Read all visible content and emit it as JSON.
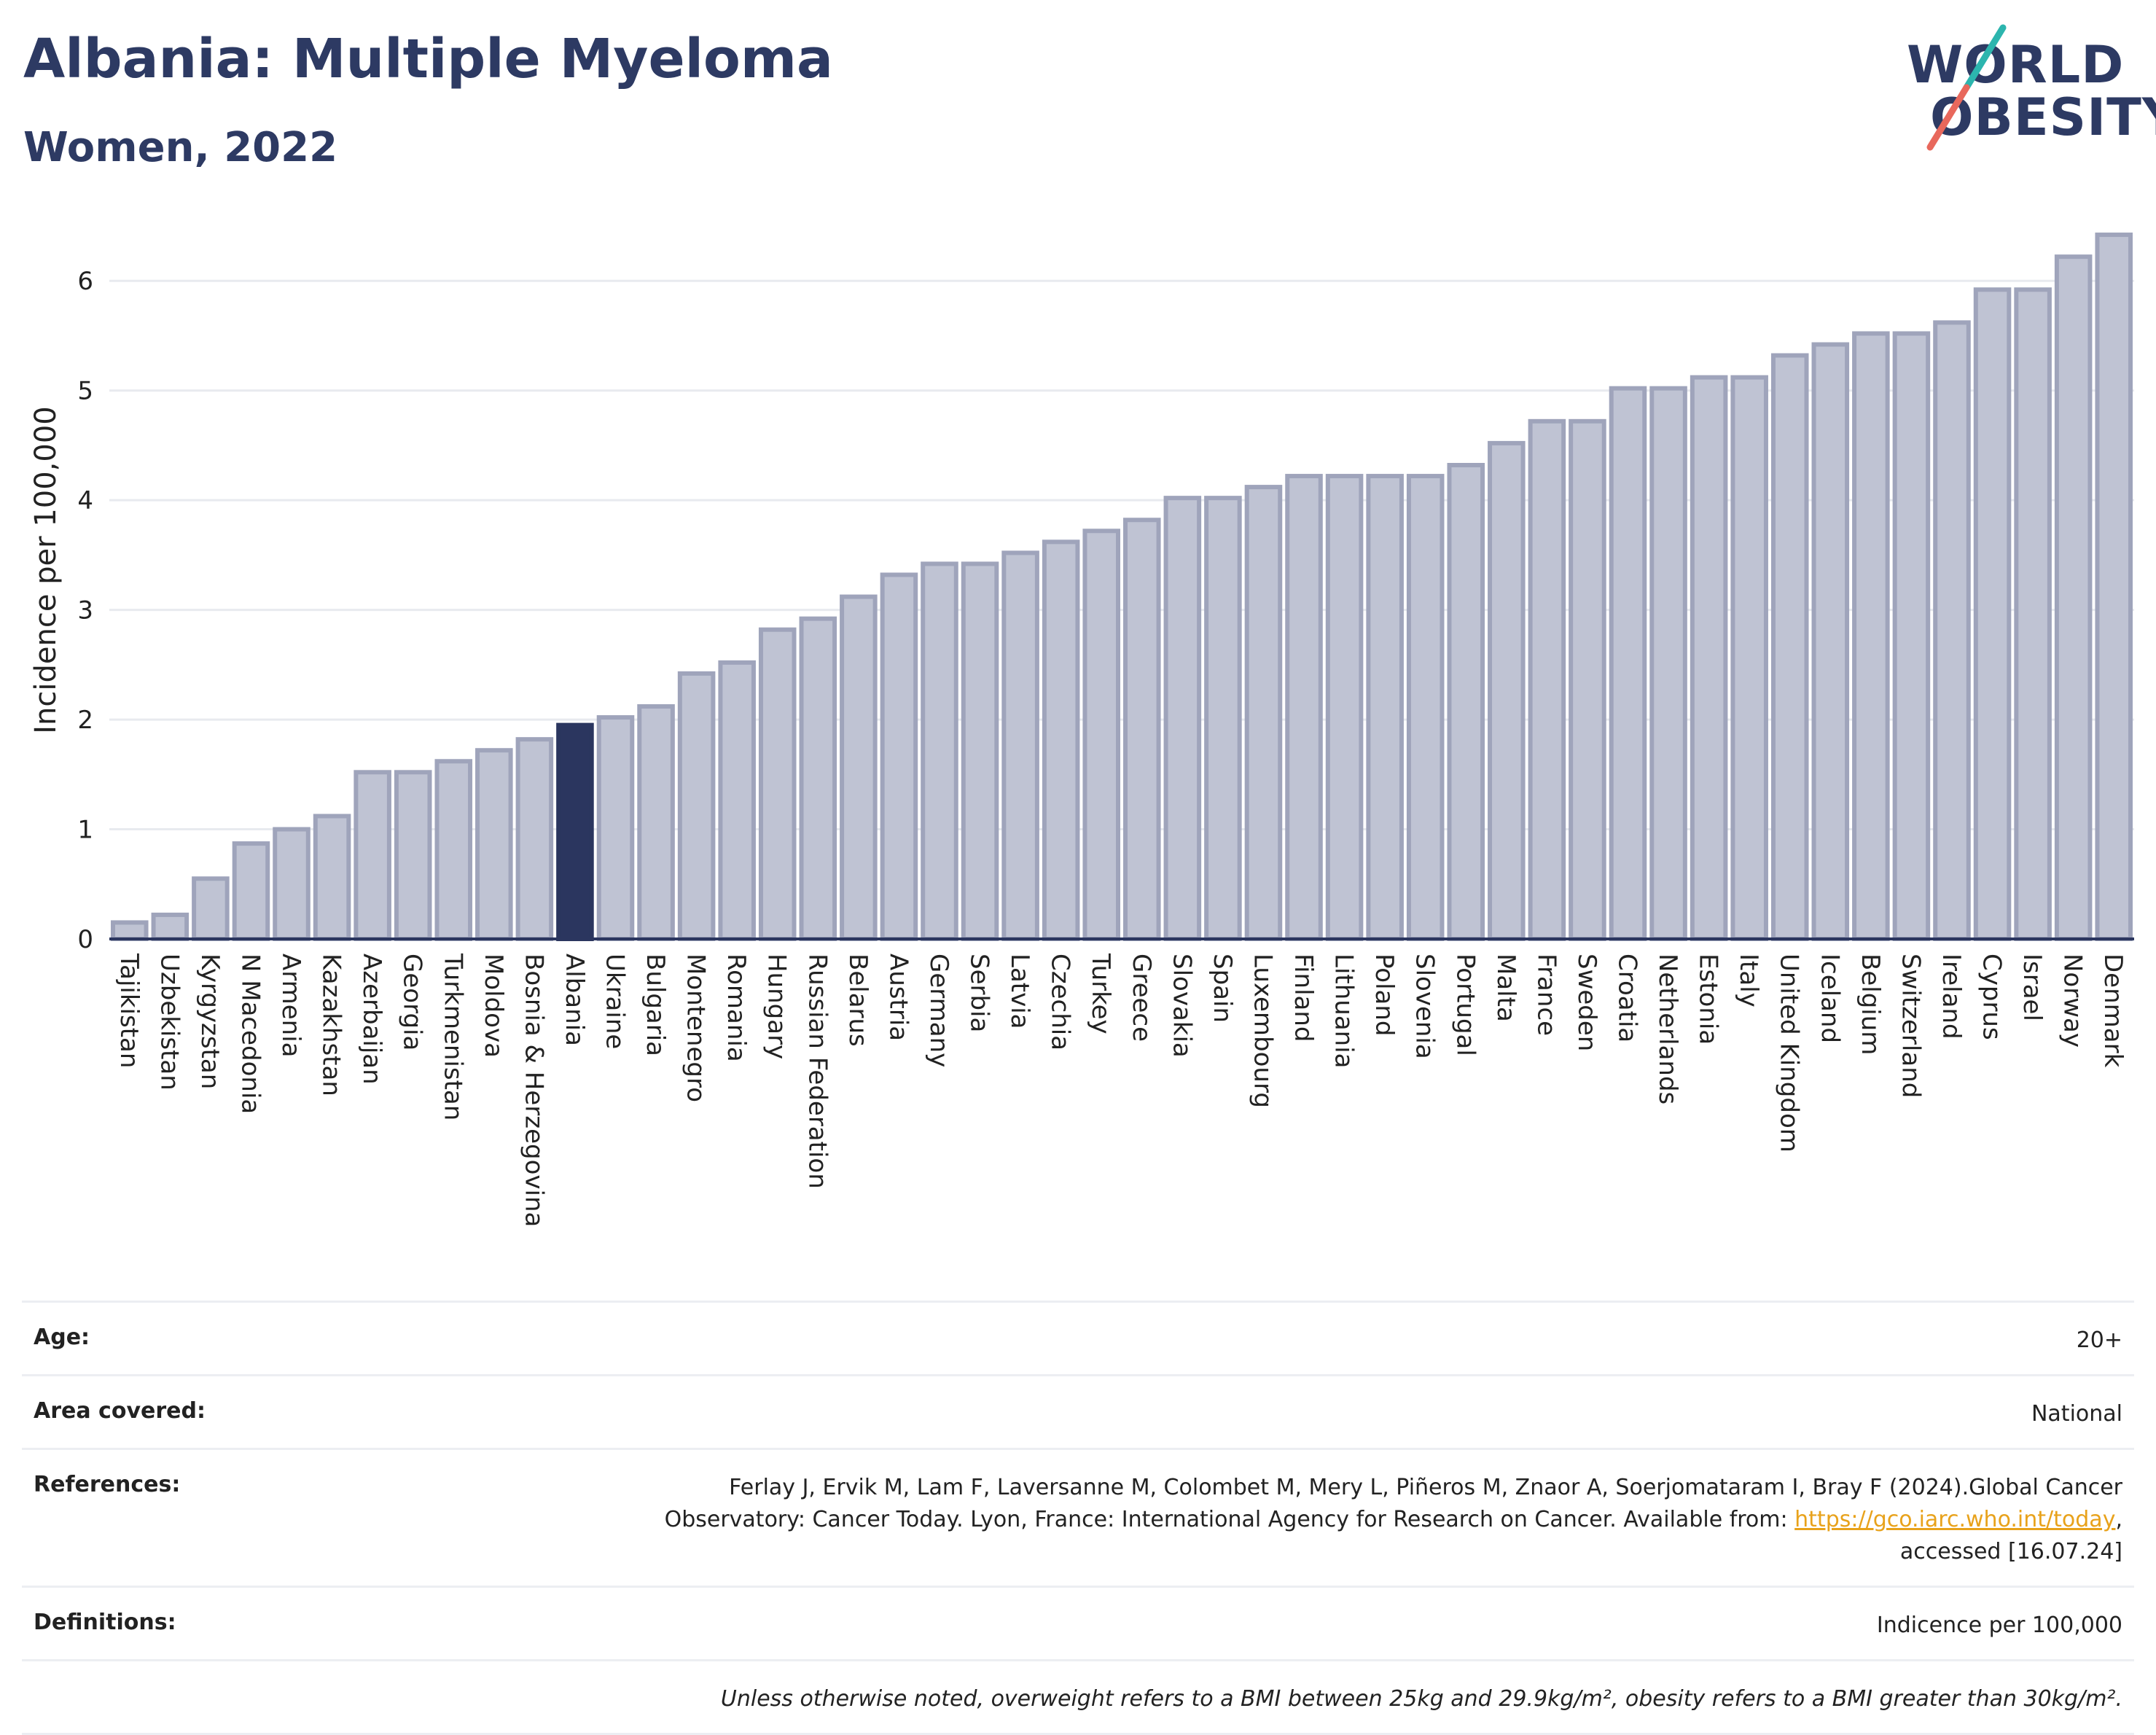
{
  "header": {
    "title": "Albania: Multiple Myeloma",
    "subtitle": "Women, 2022",
    "logo_line1": "WORLD",
    "logo_line2": "OBESITY"
  },
  "colors": {
    "bar": "#bfc3d3",
    "bar_stroke": "#9fa4bb",
    "highlight": "#2b365f",
    "logo_teal": "#2cb5ae",
    "logo_coral": "#e8685c",
    "link": "#e8a21b"
  },
  "chart_data": {
    "type": "bar",
    "ylabel": "Incidence per 100,000",
    "ylim": [
      0,
      6.5
    ],
    "yticks": [
      0,
      1,
      2,
      3,
      4,
      5,
      6
    ],
    "grid": true,
    "highlight": "Albania",
    "categories": [
      "Tajikistan",
      "Uzbekistan",
      "Kyrgyzstan",
      "N Macedonia",
      "Armenia",
      "Kazakhstan",
      "Azerbaijan",
      "Georgia",
      "Turkmenistan",
      "Moldova",
      "Bosnia & Herzegovina",
      "Albania",
      "Ukraine",
      "Bulgaria",
      "Montenegro",
      "Romania",
      "Hungary",
      "Russian Federation",
      "Belarus",
      "Austria",
      "Germany",
      "Serbia",
      "Latvia",
      "Czechia",
      "Turkey",
      "Greece",
      "Slovakia",
      "Spain",
      "Luxembourg",
      "Finland",
      "Lithuania",
      "Poland",
      "Slovenia",
      "Portugal",
      "Malta",
      "France",
      "Sweden",
      "Croatia",
      "Netherlands",
      "Estonia",
      "Italy",
      "United Kingdom",
      "Iceland",
      "Belgium",
      "Switzerland",
      "Ireland",
      "Cyprus",
      "Israel",
      "Norway",
      "Denmark"
    ],
    "values": [
      0.15,
      0.22,
      0.55,
      0.87,
      1.0,
      1.12,
      1.52,
      1.52,
      1.62,
      1.72,
      1.82,
      1.95,
      2.02,
      2.12,
      2.42,
      2.52,
      2.82,
      2.92,
      3.12,
      3.32,
      3.42,
      3.42,
      3.52,
      3.62,
      3.72,
      3.82,
      4.02,
      4.02,
      4.12,
      4.22,
      4.22,
      4.22,
      4.22,
      4.32,
      4.52,
      4.72,
      4.72,
      5.02,
      5.02,
      5.12,
      5.12,
      5.32,
      5.42,
      5.52,
      5.52,
      5.62,
      5.92,
      5.92,
      6.22,
      6.42
    ]
  },
  "info": {
    "age_label": "Age:",
    "age_value": "20+",
    "area_label": "Area covered:",
    "area_value": "National",
    "refs_label": "References:",
    "refs_line1": "Ferlay J, Ervik M, Lam F, Laversanne M, Colombet M, Mery L, Piñeros M, Znaor A, Soerjomataram I, Bray F (2024).Global Cancer",
    "refs_line2_a": "Observatory: Cancer Today. Lyon, France: International Agency for Research on Cancer. Available from: ",
    "refs_link": "https://gco.iarc.who.int/today",
    "refs_line2_b": ",",
    "refs_line3": "accessed [16.07.24]",
    "defs_label": "Definitions:",
    "defs_value": "Indicence per 100,000",
    "note": "Unless otherwise noted, overweight refers to a BMI between 25kg and 29.9kg/m², obesity refers to a BMI greater than 30kg/m²."
  }
}
